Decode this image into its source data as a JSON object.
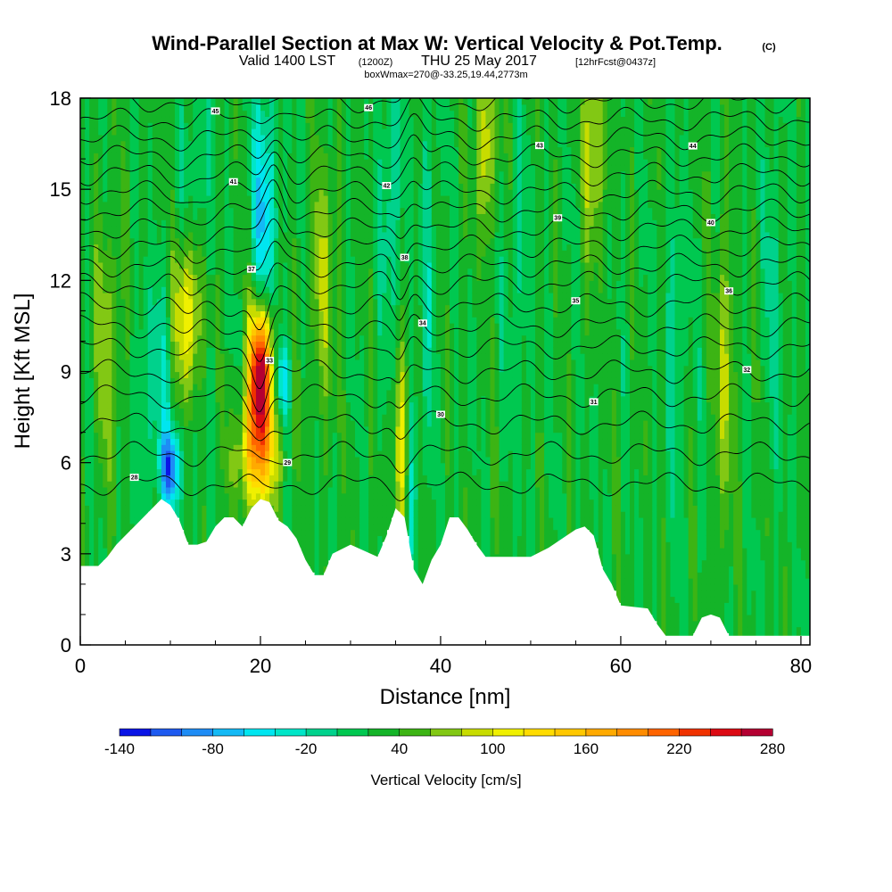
{
  "chart_data": {
    "type": "heatmap",
    "title": "Wind-Parallel Section at Max W: Vertical Velocity & Pot.Temp.",
    "title_mark": "(C)",
    "subtitle_main": "Valid 1400 LST",
    "subtitle_utc": "(1200Z)",
    "subtitle_date": "THU 25 May 2017",
    "subtitle_fcst": "[12hrFcst@0437z]",
    "box_info": "boxWmax=270@-33.25,19.44,2773m",
    "xlabel": "Distance [nm]",
    "ylabel": "Height [Kft MSL]",
    "xlim": [
      0,
      81
    ],
    "ylim": [
      0,
      18
    ],
    "x_ticks": [
      "0",
      "20",
      "40",
      "60",
      "80"
    ],
    "x_tick_values": [
      0,
      20,
      40,
      60,
      80
    ],
    "y_ticks": [
      "0",
      "3",
      "6",
      "9",
      "12",
      "15",
      "18"
    ],
    "y_tick_values": [
      0,
      3,
      6,
      9,
      12,
      15,
      18
    ],
    "colorbar": {
      "label": "Vertical Velocity [cm/s]",
      "tick_labels": [
        "-140",
        "-80",
        "-20",
        "40",
        "100",
        "160",
        "220",
        "280"
      ],
      "tick_values": [
        -140,
        -80,
        -20,
        40,
        100,
        160,
        220,
        280
      ],
      "bins": [
        -140,
        -120,
        -100,
        -80,
        -60,
        -40,
        -20,
        0,
        20,
        40,
        60,
        80,
        100,
        120,
        140,
        160,
        180,
        200,
        220,
        240,
        260,
        280
      ],
      "colors": [
        "#0a14e6",
        "#1e5af0",
        "#1e8cf5",
        "#14b9f5",
        "#00e6f0",
        "#00e6c8",
        "#00d28c",
        "#00c850",
        "#14b428",
        "#3cb414",
        "#82c814",
        "#c8dc00",
        "#f0f000",
        "#ffdc00",
        "#ffc800",
        "#ffaa00",
        "#ff8c00",
        "#ff6400",
        "#f03200",
        "#dc0a14",
        "#b40032"
      ]
    },
    "terrain_kft": [
      [
        0,
        2.6
      ],
      [
        2,
        2.6
      ],
      [
        3,
        2.9
      ],
      [
        4,
        3.3
      ],
      [
        5,
        3.6
      ],
      [
        6,
        3.9
      ],
      [
        7,
        4.2
      ],
      [
        8,
        4.5
      ],
      [
        9,
        4.8
      ],
      [
        10,
        4.6
      ],
      [
        11,
        4.1
      ],
      [
        12,
        3.3
      ],
      [
        13,
        3.3
      ],
      [
        14,
        3.4
      ],
      [
        15,
        3.9
      ],
      [
        16,
        4.2
      ],
      [
        17,
        4.2
      ],
      [
        18,
        3.9
      ],
      [
        19,
        4.5
      ],
      [
        20,
        4.8
      ],
      [
        21,
        4.7
      ],
      [
        22,
        4.1
      ],
      [
        23,
        3.9
      ],
      [
        24,
        3.5
      ],
      [
        25,
        2.8
      ],
      [
        26,
        2.3
      ],
      [
        27,
        2.3
      ],
      [
        28,
        3.0
      ],
      [
        30,
        3.3
      ],
      [
        33,
        2.9
      ],
      [
        34,
        3.6
      ],
      [
        35,
        4.5
      ],
      [
        36,
        4.2
      ],
      [
        37,
        2.5
      ],
      [
        38,
        2.0
      ],
      [
        39,
        2.8
      ],
      [
        40,
        3.3
      ],
      [
        41,
        4.2
      ],
      [
        42,
        4.2
      ],
      [
        43,
        3.8
      ],
      [
        44,
        3.3
      ],
      [
        45,
        2.9
      ],
      [
        50,
        2.9
      ],
      [
        52,
        3.2
      ],
      [
        54,
        3.6
      ],
      [
        55,
        3.8
      ],
      [
        56,
        3.9
      ],
      [
        57,
        3.6
      ],
      [
        58,
        2.5
      ],
      [
        59,
        2.0
      ],
      [
        60,
        1.3
      ],
      [
        63,
        1.2
      ],
      [
        64,
        0.7
      ],
      [
        65,
        0.3
      ],
      [
        68,
        0.3
      ],
      [
        69,
        0.9
      ],
      [
        70,
        1.0
      ],
      [
        71,
        0.9
      ],
      [
        72,
        0.3
      ],
      [
        81,
        0.3
      ]
    ],
    "velocity_features": [
      {
        "x": 20,
        "y": 9.0,
        "value": 270,
        "sx": 0.9,
        "sy": 1.6
      },
      {
        "x": 19.7,
        "y": 6.2,
        "value": 120,
        "sx": 1.6,
        "sy": 1.3
      },
      {
        "x": 11.8,
        "y": 10.8,
        "value": 100,
        "sx": 1.0,
        "sy": 1.8
      },
      {
        "x": 10.0,
        "y": 5.8,
        "value": -120,
        "sx": 0.8,
        "sy": 0.9
      },
      {
        "x": 8.5,
        "y": 8.5,
        "value": -40,
        "sx": 1.5,
        "sy": 2.5
      },
      {
        "x": 20.4,
        "y": 14.0,
        "value": -90,
        "sx": 0.9,
        "sy": 3.0
      },
      {
        "x": 22.5,
        "y": 8.7,
        "value": -80,
        "sx": 0.6,
        "sy": 0.9
      },
      {
        "x": 35.8,
        "y": 6.5,
        "value": 100,
        "sx": 0.6,
        "sy": 2.3
      },
      {
        "x": 36.8,
        "y": 6.0,
        "value": -60,
        "sx": 0.6,
        "sy": 2.5
      },
      {
        "x": 34.5,
        "y": 15.0,
        "value": -50,
        "sx": 0.7,
        "sy": 3.5
      },
      {
        "x": 38.8,
        "y": 13.0,
        "value": -40,
        "sx": 0.5,
        "sy": 4.0
      },
      {
        "x": 45.0,
        "y": 16.5,
        "value": 70,
        "sx": 0.8,
        "sy": 2.0
      },
      {
        "x": 57.0,
        "y": 16.5,
        "value": 70,
        "sx": 0.8,
        "sy": 2.5
      },
      {
        "x": 13.0,
        "y": 16.0,
        "value": -30,
        "sx": 1.2,
        "sy": 2.0
      },
      {
        "x": 27.0,
        "y": 12.0,
        "value": 50,
        "sx": 1.0,
        "sy": 3.0
      },
      {
        "x": 48.5,
        "y": 12.0,
        "value": -30,
        "sx": 0.8,
        "sy": 3.0
      },
      {
        "x": 66.0,
        "y": 10.0,
        "value": -30,
        "sx": 0.8,
        "sy": 4.0
      },
      {
        "x": 71.5,
        "y": 9.0,
        "value": 60,
        "sx": 0.7,
        "sy": 3.5
      },
      {
        "x": 77.0,
        "y": 12.0,
        "value": -30,
        "sx": 0.7,
        "sy": 4.0
      },
      {
        "x": 3.0,
        "y": 10.0,
        "value": 50,
        "sx": 1.0,
        "sy": 3.0
      }
    ],
    "theta_levels": [
      {
        "base_kft": 5.3,
        "label": "28"
      },
      {
        "base_kft": 6.3,
        "label": "29"
      },
      {
        "base_kft": 7.3,
        "label": "30"
      },
      {
        "base_kft": 8.2,
        "label": "31"
      },
      {
        "base_kft": 9.0,
        "label": "32"
      },
      {
        "base_kft": 9.8,
        "label": "33"
      },
      {
        "base_kft": 10.5,
        "label": "34"
      },
      {
        "base_kft": 11.2,
        "label": "35"
      },
      {
        "base_kft": 11.9,
        "label": "36"
      },
      {
        "base_kft": 12.5,
        "label": "37"
      },
      {
        "base_kft": 13.1,
        "label": "38"
      },
      {
        "base_kft": 13.7,
        "label": "39"
      },
      {
        "base_kft": 14.3,
        "label": "40"
      },
      {
        "base_kft": 14.9,
        "label": "41"
      },
      {
        "base_kft": 15.5,
        "label": "42"
      },
      {
        "base_kft": 16.1,
        "label": "43"
      },
      {
        "base_kft": 16.7,
        "label": "44"
      },
      {
        "base_kft": 17.3,
        "label": "45"
      },
      {
        "base_kft": 17.9,
        "label": "46"
      }
    ]
  }
}
